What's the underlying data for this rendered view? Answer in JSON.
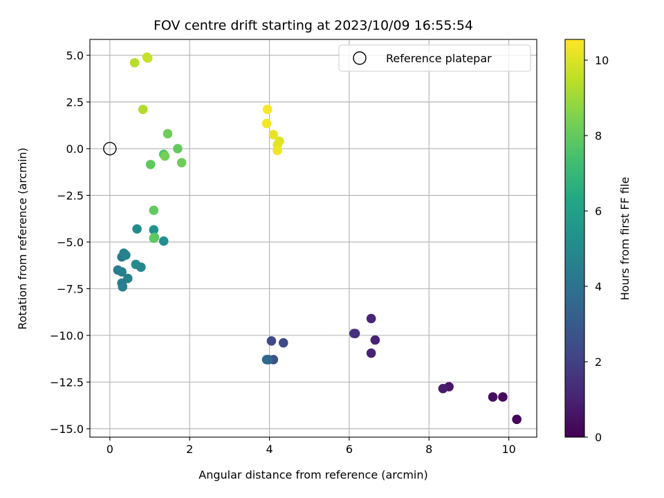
{
  "chart_data": {
    "type": "scatter",
    "title": "FOV centre drift starting at 2023/10/09 16:55:54",
    "xlabel": "Angular distance from reference (arcmin)",
    "ylabel": "Rotation from reference (arcmin)",
    "xlim": [
      -0.5,
      10.7
    ],
    "ylim": [
      -15.45,
      5.85
    ],
    "xticks": [
      0,
      2,
      4,
      6,
      8,
      10
    ],
    "xtick_labels": [
      "0",
      "2",
      "4",
      "6",
      "8",
      "10"
    ],
    "yticks": [
      5.0,
      2.5,
      0.0,
      -2.5,
      -5.0,
      -7.5,
      -10.0,
      -12.5,
      -15.0
    ],
    "ytick_labels": [
      "5.0",
      "2.5",
      "0.0",
      "−2.5",
      "−5.0",
      "−7.5",
      "−10.0",
      "−12.5",
      "−15.0"
    ],
    "grid": true,
    "legend": {
      "position": "top-right",
      "entries": [
        "Reference platepar"
      ]
    },
    "reference_point": {
      "x": 0,
      "y": 0,
      "name": "Reference platepar"
    },
    "colorbar": {
      "label": "Hours from first FF file",
      "colormap": "viridis",
      "range": [
        0,
        10.55
      ],
      "ticks": [
        0,
        2,
        4,
        6,
        8,
        10
      ],
      "tick_labels": [
        "0",
        "2",
        "4",
        "6",
        "8",
        "10"
      ]
    },
    "points": [
      {
        "x": 10.2,
        "y": -14.5,
        "c": 0.1
      },
      {
        "x": 9.85,
        "y": -13.3,
        "c": 0.3
      },
      {
        "x": 9.6,
        "y": -13.3,
        "c": 0.4
      },
      {
        "x": 8.5,
        "y": -12.75,
        "c": 0.6
      },
      {
        "x": 8.35,
        "y": -12.85,
        "c": 0.8
      },
      {
        "x": 6.65,
        "y": -10.25,
        "c": 1.0
      },
      {
        "x": 6.55,
        "y": -10.95,
        "c": 1.0
      },
      {
        "x": 6.55,
        "y": -9.1,
        "c": 1.1
      },
      {
        "x": 6.15,
        "y": -9.9,
        "c": 1.4
      },
      {
        "x": 6.12,
        "y": -9.9,
        "c": 1.5
      },
      {
        "x": 4.35,
        "y": -10.4,
        "c": 2.4
      },
      {
        "x": 4.05,
        "y": -10.3,
        "c": 2.3
      },
      {
        "x": 4.1,
        "y": -11.3,
        "c": 2.6
      },
      {
        "x": 3.98,
        "y": -11.3,
        "c": 3.0
      },
      {
        "x": 3.93,
        "y": -11.3,
        "c": 3.3
      },
      {
        "x": 3.95,
        "y": -11.3,
        "c": 3.6
      },
      {
        "x": 0.3,
        "y": -5.8,
        "c": 4.3
      },
      {
        "x": 0.35,
        "y": -5.6,
        "c": 4.5
      },
      {
        "x": 0.4,
        "y": -5.7,
        "c": 4.7
      },
      {
        "x": 0.2,
        "y": -6.5,
        "c": 4.4
      },
      {
        "x": 0.3,
        "y": -6.6,
        "c": 4.5
      },
      {
        "x": 0.45,
        "y": -6.95,
        "c": 4.6
      },
      {
        "x": 0.3,
        "y": -7.2,
        "c": 4.4
      },
      {
        "x": 0.32,
        "y": -7.4,
        "c": 4.5
      },
      {
        "x": 0.65,
        "y": -6.2,
        "c": 5.0
      },
      {
        "x": 0.78,
        "y": -6.35,
        "c": 4.9
      },
      {
        "x": 0.68,
        "y": -4.3,
        "c": 5.1
      },
      {
        "x": 1.1,
        "y": -4.35,
        "c": 5.3
      },
      {
        "x": 1.35,
        "y": -4.95,
        "c": 5.2
      },
      {
        "x": 1.12,
        "y": -4.75,
        "c": 7.7
      },
      {
        "x": 1.1,
        "y": -4.8,
        "c": 7.9
      },
      {
        "x": 1.1,
        "y": -3.3,
        "c": 8.0
      },
      {
        "x": 1.02,
        "y": -0.85,
        "c": 7.9
      },
      {
        "x": 1.35,
        "y": -0.3,
        "c": 7.6
      },
      {
        "x": 1.38,
        "y": -0.4,
        "c": 8.3
      },
      {
        "x": 1.45,
        "y": 0.8,
        "c": 8.2
      },
      {
        "x": 1.7,
        "y": 0.0,
        "c": 8.0
      },
      {
        "x": 1.8,
        "y": -0.75,
        "c": 8.2
      },
      {
        "x": 0.83,
        "y": 2.1,
        "c": 9.3
      },
      {
        "x": 0.62,
        "y": 4.6,
        "c": 9.4
      },
      {
        "x": 0.93,
        "y": 4.9,
        "c": 9.6
      },
      {
        "x": 0.95,
        "y": 4.85,
        "c": 9.7
      },
      {
        "x": 3.95,
        "y": 2.1,
        "c": 10.5
      },
      {
        "x": 3.93,
        "y": 1.35,
        "c": 10.4
      },
      {
        "x": 4.1,
        "y": 0.75,
        "c": 10.2
      },
      {
        "x": 4.25,
        "y": 0.4,
        "c": 10.0
      },
      {
        "x": 4.2,
        "y": 0.2,
        "c": 10.1
      },
      {
        "x": 4.2,
        "y": -0.1,
        "c": 10.3
      }
    ]
  }
}
